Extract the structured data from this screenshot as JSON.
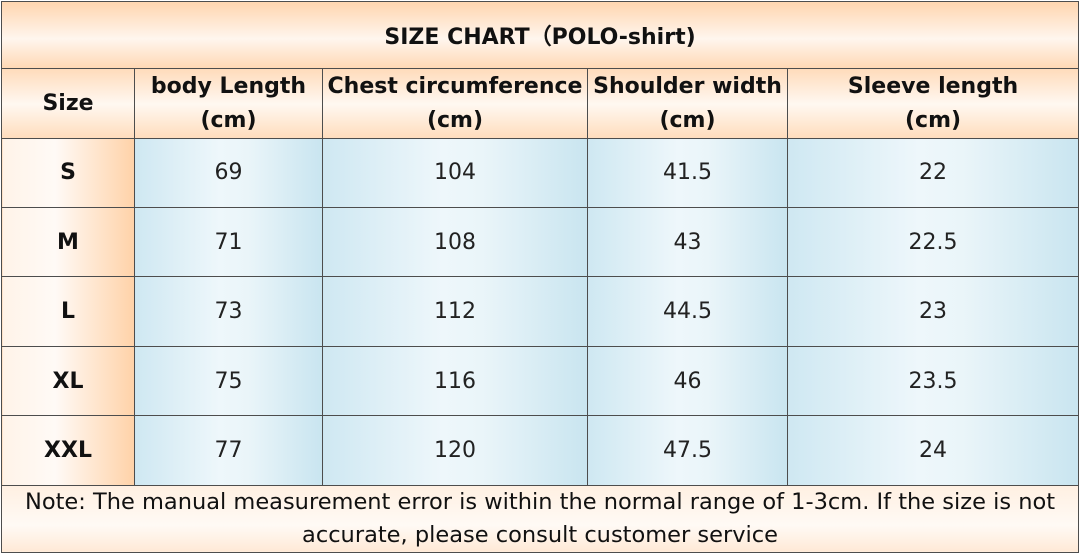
{
  "title": "SIZE CHART（POLO-shirt)",
  "headers": [
    {
      "l1": "Size",
      "l2": ""
    },
    {
      "l1": "body Length",
      "l2": "(cm)"
    },
    {
      "l1": "Chest circumference",
      "l2": "(cm)"
    },
    {
      "l1": "Shoulder width",
      "l2": "(cm)"
    },
    {
      "l1": "Sleeve length",
      "l2": "(cm)"
    }
  ],
  "rows": [
    [
      "S",
      "69",
      "104",
      "41.5",
      "22"
    ],
    [
      "M",
      "71",
      "108",
      "43",
      "22.5"
    ],
    [
      "L",
      "73",
      "112",
      "44.5",
      "23"
    ],
    [
      "XL",
      "75",
      "116",
      "46",
      "23.5"
    ],
    [
      "XXL",
      "77",
      "120",
      "47.5",
      "24"
    ]
  ],
  "note": {
    "line1": "Note: The manual measurement error is within the normal range of 1-3cm. If the size is not",
    "line2": "accurate, please consult customer service"
  }
}
